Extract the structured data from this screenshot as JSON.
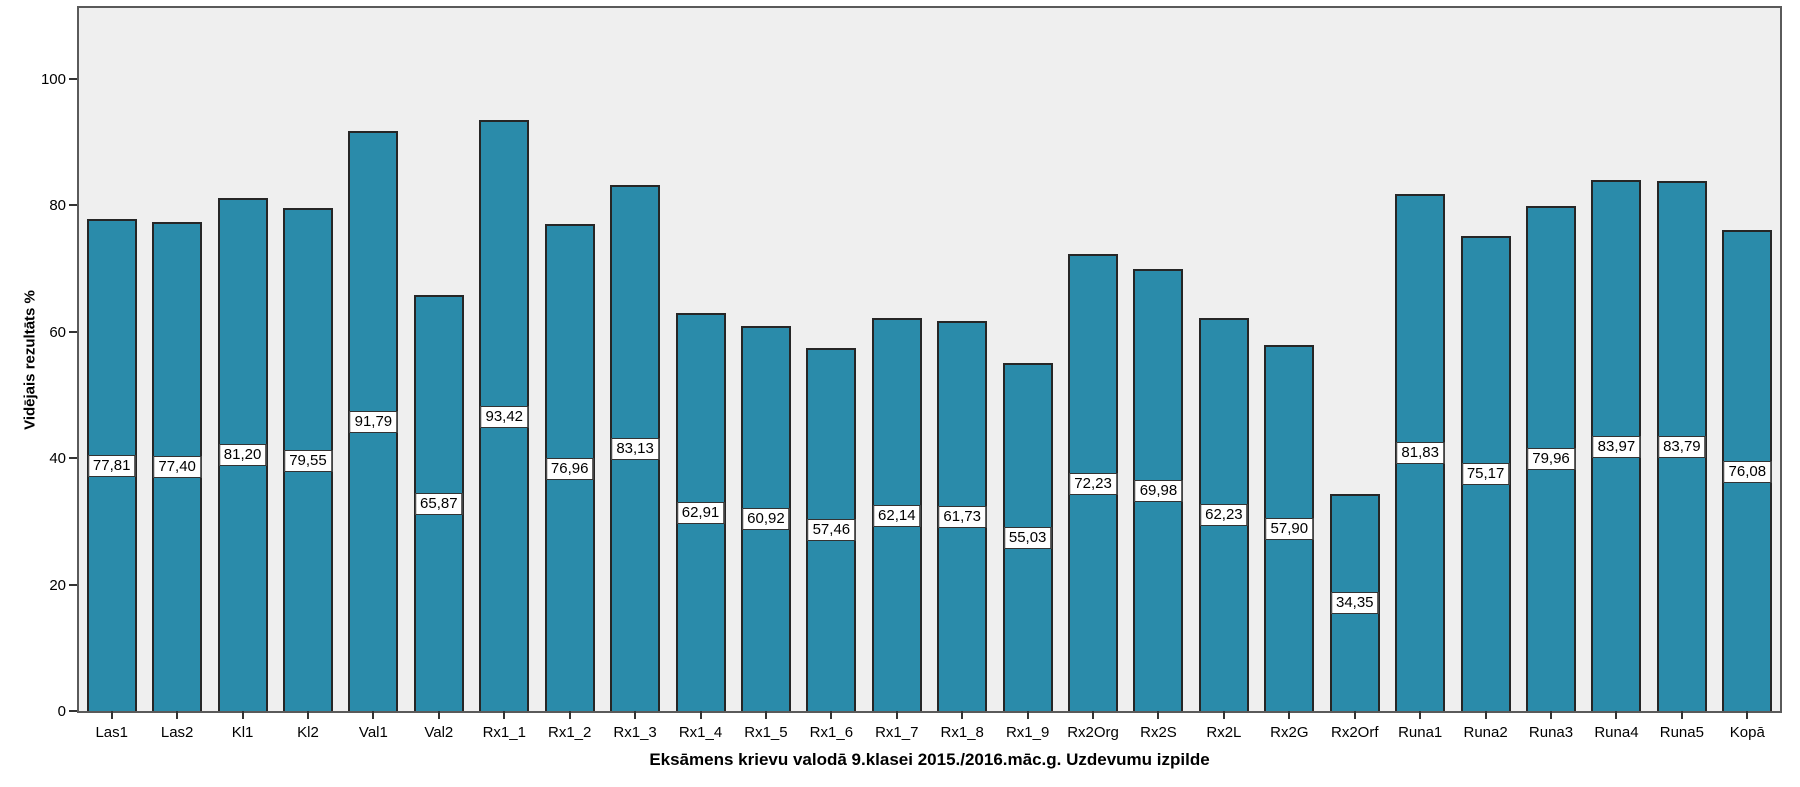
{
  "chart_data": {
    "type": "bar",
    "title": "",
    "xlabel": "Eksāmens krievu valodā 9.klasei 2015./2016.māc.g. Uzdevumu izpilde",
    "ylabel": "Vidējais rezultāts %",
    "categories": [
      "Las1",
      "Las2",
      "Kl1",
      "Kl2",
      "Val1",
      "Val2",
      "Rx1_1",
      "Rx1_2",
      "Rx1_3",
      "Rx1_4",
      "Rx1_5",
      "Rx1_6",
      "Rx1_7",
      "Rx1_8",
      "Rx1_9",
      "Rx2Org",
      "Rx2S",
      "Rx2L",
      "Rx2G",
      "Rx2Orf",
      "Runa1",
      "Runa2",
      "Runa3",
      "Runa4",
      "Runa5",
      "Kopā"
    ],
    "values": [
      77.81,
      77.4,
      81.2,
      79.55,
      91.79,
      65.87,
      93.42,
      76.96,
      83.13,
      62.91,
      60.92,
      57.46,
      62.14,
      61.73,
      55.03,
      72.23,
      69.98,
      62.23,
      57.9,
      34.35,
      81.83,
      75.17,
      79.96,
      83.97,
      83.79,
      76.08
    ],
    "value_labels": [
      "77,81",
      "77,40",
      "81,20",
      "79,55",
      "91,79",
      "65,87",
      "93,42",
      "76,96",
      "83,13",
      "62,91",
      "60,92",
      "57,46",
      "62,14",
      "61,73",
      "55,03",
      "72,23",
      "69,98",
      "62,23",
      "57,90",
      "34,35",
      "81,83",
      "75,17",
      "79,96",
      "83,97",
      "83,79",
      "76,08"
    ],
    "yticks": [
      0,
      20,
      40,
      60,
      80,
      100
    ],
    "ylim": [
      0,
      111.2
    ],
    "grid": false,
    "legend": null,
    "colors": {
      "bar_fill": "#2A8BAA",
      "bar_border": "#262626",
      "plot_background": "#EFEFEF",
      "figure_background": "#FFFFFF",
      "label_box_fill": "#FFFFFF",
      "label_box_border": "#333333",
      "axis": "#333333"
    }
  }
}
